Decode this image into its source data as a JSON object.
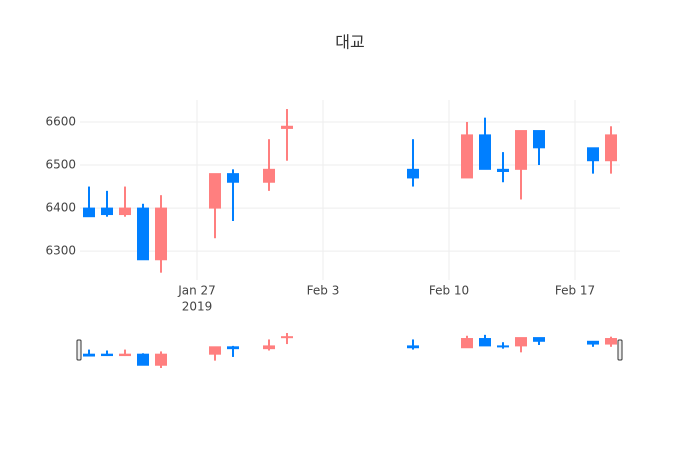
{
  "chart_data": {
    "type": "candlestick",
    "title": "대교",
    "x": [
      "2019-01-21",
      "2019-01-22",
      "2019-01-23",
      "2019-01-24",
      "2019-01-25",
      "2019-01-28",
      "2019-01-29",
      "2019-01-31",
      "2019-02-01",
      "2019-02-08",
      "2019-02-11",
      "2019-02-12",
      "2019-02-13",
      "2019-02-14",
      "2019-02-15",
      "2019-02-18",
      "2019-02-19"
    ],
    "open": [
      6400,
      6400,
      6385,
      6400,
      6280,
      6400,
      6480,
      6460,
      6585,
      6490,
      6470,
      6570,
      6490,
      6490,
      6580,
      6540,
      6510
    ],
    "high": [
      6450,
      6440,
      6450,
      6410,
      6430,
      6480,
      6490,
      6560,
      6630,
      6560,
      6600,
      6610,
      6530,
      6580,
      6580,
      6540,
      6590
    ],
    "low": [
      6380,
      6380,
      6380,
      6280,
      6250,
      6330,
      6370,
      6440,
      6510,
      6450,
      6470,
      6490,
      6460,
      6420,
      6500,
      6480,
      6480
    ],
    "close": [
      6380,
      6385,
      6400,
      6280,
      6400,
      6480,
      6460,
      6490,
      6590,
      6470,
      6570,
      6490,
      6485,
      6580,
      6540,
      6510,
      6570
    ],
    "increasing_color": "#ff7f7f",
    "decreasing_color": "#007fff",
    "xlim": [
      "2019-01-20T12:00",
      "2019-02-19T12:00"
    ],
    "xticks": [
      {
        "value": "2019-01-27",
        "label": "Jan 27",
        "year": "2019"
      },
      {
        "value": "2019-02-03",
        "label": "Feb 3"
      },
      {
        "value": "2019-02-10",
        "label": "Feb 10"
      },
      {
        "value": "2019-02-17",
        "label": "Feb 17"
      }
    ],
    "ylim": [
      6233,
      6651
    ],
    "yticks": [
      6300,
      6400,
      6500,
      6600
    ],
    "grid": true,
    "rangeslider": true
  }
}
